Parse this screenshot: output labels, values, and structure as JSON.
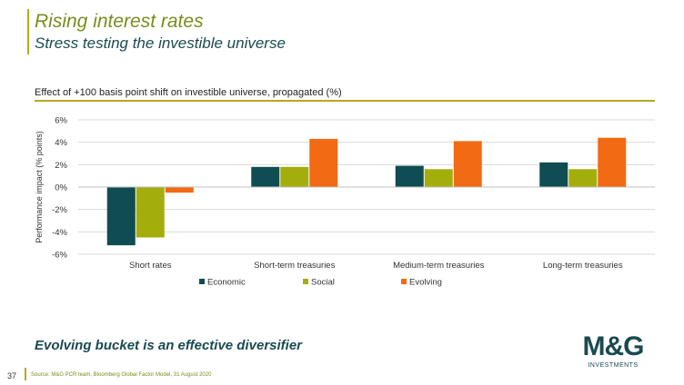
{
  "header": {
    "title": "Rising interest rates",
    "subtitle": "Stress testing the investible universe"
  },
  "chart_data": {
    "type": "bar",
    "title": "Effect of +100 basis point shift on investible universe, propagated (%)",
    "xlabel": "",
    "ylabel": "Performance impact (% points)",
    "ylim": [
      -6,
      6
    ],
    "yticks": [
      6,
      4,
      2,
      0,
      -2,
      -4,
      -6
    ],
    "ytick_labels": [
      "6%",
      "4%",
      "2%",
      "0%",
      "-2%",
      "-4%",
      "-6%"
    ],
    "grid": true,
    "legend_position": "bottom",
    "categories": [
      "Short rates",
      "Short-term treasuries",
      "Medium-term treasuries",
      "Long-term treasuries"
    ],
    "series": [
      {
        "name": "Economic",
        "color": "#0f4d52",
        "values": [
          -5.2,
          1.8,
          1.9,
          2.2
        ]
      },
      {
        "name": "Social",
        "color": "#a3ae0d",
        "values": [
          -4.5,
          1.8,
          1.6,
          1.6
        ]
      },
      {
        "name": "Evolving",
        "color": "#f26a13",
        "values": [
          -0.5,
          4.3,
          4.1,
          4.4
        ]
      }
    ]
  },
  "conclusion": "Evolving bucket is an effective diversifier",
  "footer": {
    "page_number": "37",
    "source": "Source: M&G PCR team, Bloomberg Global Factor Model, 31 August 2020"
  },
  "logo": {
    "mark": "M&G",
    "sub": "INVESTMENTS"
  }
}
